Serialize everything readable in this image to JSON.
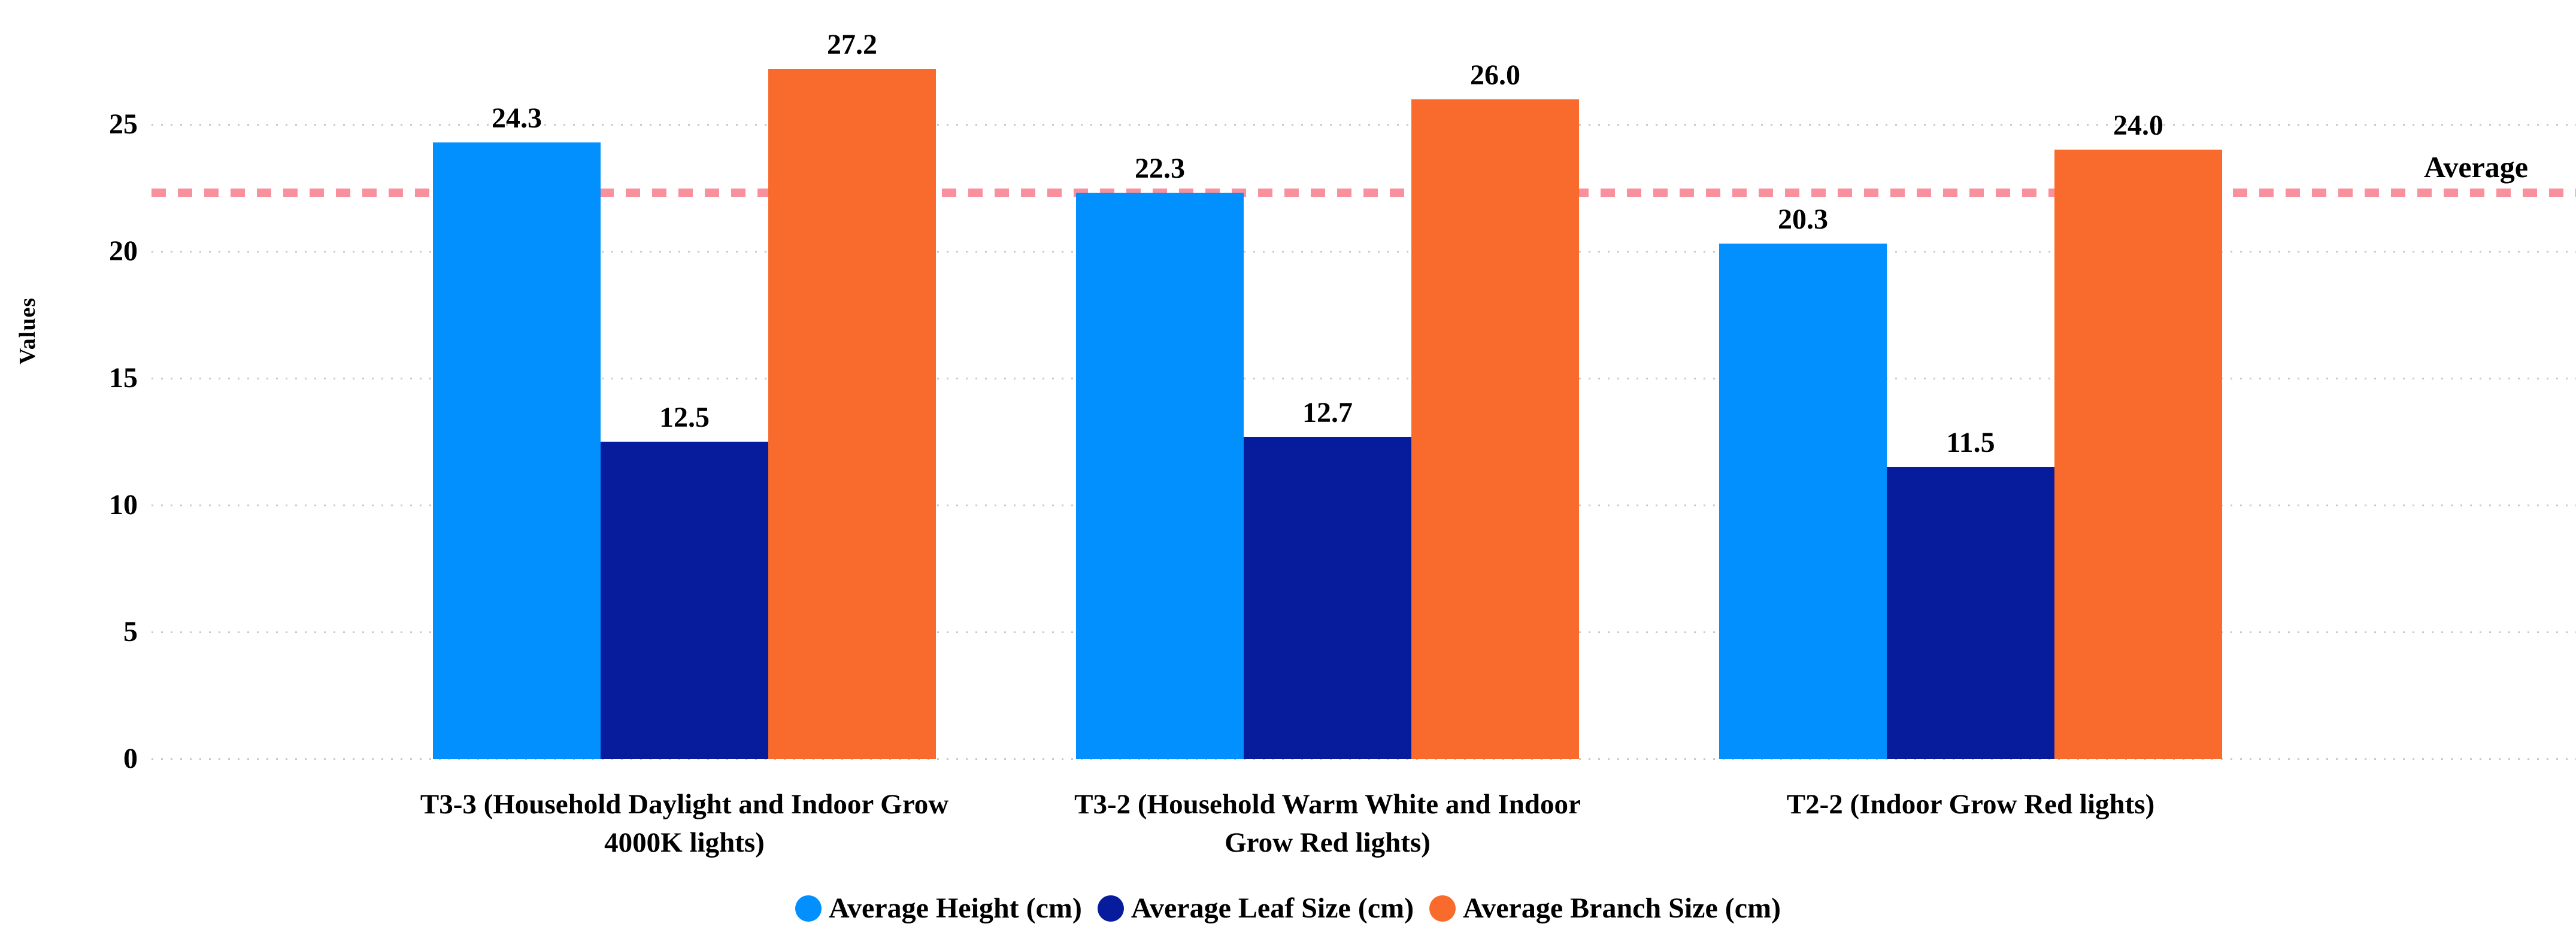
{
  "chart_data": {
    "type": "bar",
    "title": "",
    "ylabel": "Values",
    "categories": [
      "T3-3 (Household Daylight and Indoor Grow 4000K lights)",
      "T3-2 (Household Warm White and Indoor Grow Red lights)",
      "T2-2 (Indoor Grow Red lights)"
    ],
    "series": [
      {
        "name": "Average Height (cm)",
        "color": "#0190FE",
        "values": [
          24.3,
          22.3,
          20.3
        ]
      },
      {
        "name": "Average Leaf Size (cm)",
        "color": "#071C9D",
        "values": [
          12.5,
          12.7,
          11.5
        ]
      },
      {
        "name": "Average Branch Size (cm)",
        "color": "#F96B2D",
        "values": [
          27.2,
          26.0,
          24.0
        ]
      }
    ],
    "value_labels": [
      [
        "24.3",
        "12.5",
        "27.2"
      ],
      [
        "22.3",
        "12.7",
        "26.0"
      ],
      [
        "20.3",
        "11.5",
        "24.0"
      ]
    ],
    "y_ticks": [
      "0",
      "5",
      "10",
      "15",
      "20",
      "25"
    ],
    "ylim": [
      0,
      29.9
    ],
    "grid": "horizontal dotted",
    "legend_position": "bottom center",
    "average_line": {
      "label": "Average",
      "value": 22.3,
      "color": "#F9909D",
      "style": "dashed"
    }
  },
  "colors": {
    "background": "#ffffff",
    "grid": "#c8c8c8",
    "text": "#000000"
  }
}
